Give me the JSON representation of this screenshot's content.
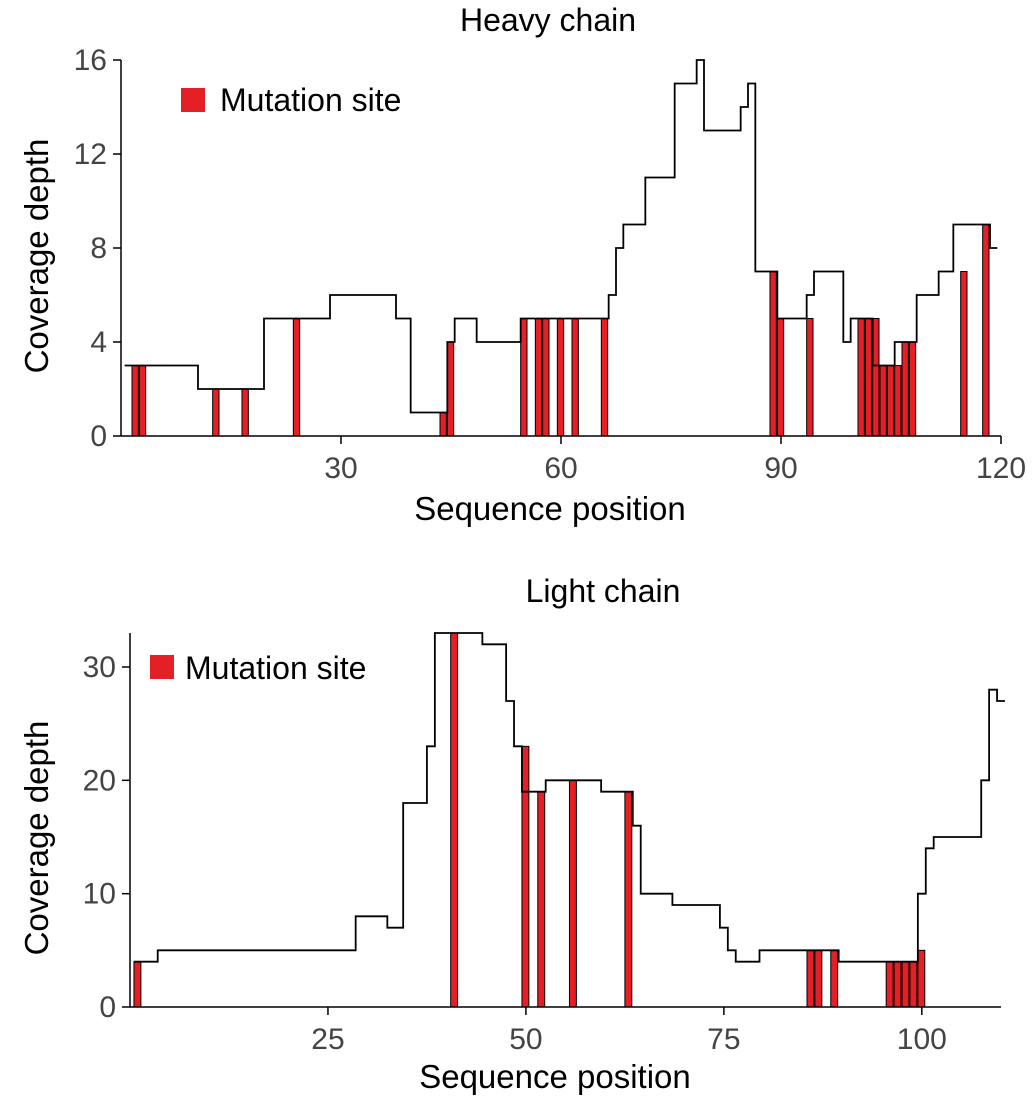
{
  "chart_data": [
    {
      "type": "bar",
      "title": "Heavy chain",
      "xlabel": "Sequence position",
      "ylabel": "Coverage depth",
      "xlim": [
        0,
        120
      ],
      "ylim": [
        0,
        16
      ],
      "x_ticks": [
        30,
        60,
        90,
        120
      ],
      "y_ticks": [
        0,
        4,
        8,
        12,
        16
      ],
      "legend": {
        "label": "Mutation site",
        "color": "#e41f26",
        "placement": "top-left"
      },
      "line_color": "#000000",
      "coverage": [
        [
          1,
          3
        ],
        [
          11,
          2
        ],
        [
          20,
          5
        ],
        [
          29,
          6
        ],
        [
          38,
          5
        ],
        [
          40,
          1
        ],
        [
          45,
          4
        ],
        [
          46,
          5
        ],
        [
          49,
          4
        ],
        [
          55,
          5
        ],
        [
          67,
          6
        ],
        [
          68,
          8
        ],
        [
          69,
          9
        ],
        [
          72,
          11
        ],
        [
          76,
          15
        ],
        [
          79,
          16
        ],
        [
          80,
          13
        ],
        [
          85,
          14
        ],
        [
          86,
          15
        ],
        [
          87,
          7
        ],
        [
          90,
          5
        ],
        [
          94,
          6
        ],
        [
          95,
          7
        ],
        [
          99,
          4
        ],
        [
          100,
          5
        ],
        [
          103,
          3
        ],
        [
          106,
          4
        ],
        [
          109,
          6
        ],
        [
          112,
          7
        ],
        [
          114,
          9
        ],
        [
          119,
          8
        ]
      ],
      "mutation_sites": [
        [
          2,
          3
        ],
        [
          3,
          3
        ],
        [
          13,
          2
        ],
        [
          17,
          2
        ],
        [
          24,
          5
        ],
        [
          44,
          1
        ],
        [
          45,
          4
        ],
        [
          55,
          5
        ],
        [
          57,
          5
        ],
        [
          58,
          5
        ],
        [
          60,
          5
        ],
        [
          62,
          5
        ],
        [
          66,
          5
        ],
        [
          89,
          7
        ],
        [
          90,
          5
        ],
        [
          94,
          5
        ],
        [
          101,
          5
        ],
        [
          102,
          5
        ],
        [
          103,
          5
        ],
        [
          104,
          3
        ],
        [
          105,
          3
        ],
        [
          106,
          3
        ],
        [
          107,
          4
        ],
        [
          108,
          4
        ],
        [
          115,
          7
        ],
        [
          118,
          9
        ]
      ]
    },
    {
      "type": "bar",
      "title": "Light chain",
      "xlabel": "Sequence position",
      "ylabel": "Coverage depth",
      "xlim": [
        0,
        110
      ],
      "ylim": [
        0,
        33
      ],
      "x_ticks": [
        25,
        50,
        75,
        100
      ],
      "y_ticks": [
        0,
        10,
        20,
        30
      ],
      "legend": {
        "label": "Mutation site",
        "color": "#e41f26",
        "placement": "top-left"
      },
      "line_color": "#000000",
      "coverage": [
        [
          1,
          4
        ],
        [
          4,
          5
        ],
        [
          29,
          8
        ],
        [
          33,
          7
        ],
        [
          35,
          18
        ],
        [
          38,
          23
        ],
        [
          39,
          33
        ],
        [
          45,
          32
        ],
        [
          48,
          27
        ],
        [
          49,
          23
        ],
        [
          50,
          19
        ],
        [
          53,
          20
        ],
        [
          60,
          19
        ],
        [
          64,
          16
        ],
        [
          65,
          10
        ],
        [
          69,
          9
        ],
        [
          75,
          7
        ],
        [
          76,
          5
        ],
        [
          77,
          4
        ],
        [
          80,
          5
        ],
        [
          90,
          4
        ],
        [
          100,
          10
        ],
        [
          101,
          14
        ],
        [
          102,
          15
        ],
        [
          108,
          20
        ],
        [
          109,
          28
        ],
        [
          110,
          27
        ]
      ],
      "mutation_sites": [
        [
          1,
          4
        ],
        [
          41,
          33
        ],
        [
          50,
          23
        ],
        [
          52,
          19
        ],
        [
          56,
          20
        ],
        [
          63,
          19
        ],
        [
          86,
          5
        ],
        [
          87,
          5
        ],
        [
          89,
          5
        ],
        [
          96,
          4
        ],
        [
          97,
          4
        ],
        [
          98,
          4
        ],
        [
          99,
          4
        ],
        [
          100,
          5
        ]
      ]
    }
  ]
}
